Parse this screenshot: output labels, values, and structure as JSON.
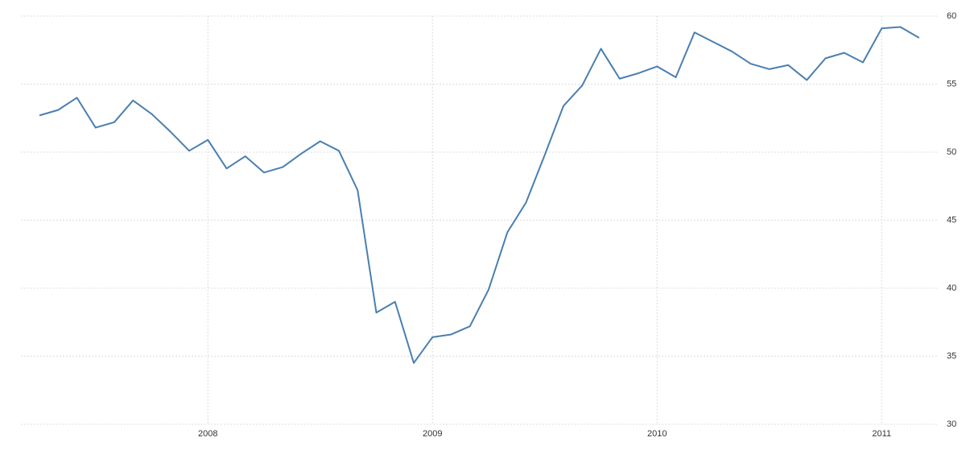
{
  "chart_data": {
    "type": "line",
    "categories": [
      null,
      null,
      null,
      null,
      null,
      null,
      null,
      null,
      null,
      "2008",
      null,
      null,
      null,
      null,
      null,
      null,
      null,
      null,
      null,
      null,
      null,
      "2009",
      null,
      null,
      null,
      null,
      null,
      null,
      null,
      null,
      null,
      null,
      null,
      "2010",
      null,
      null,
      null,
      null,
      null,
      null,
      null,
      null,
      null,
      null,
      null,
      "2011",
      null,
      null
    ],
    "series": [
      {
        "color": "#4a7fb0",
        "values": [
          52.7,
          53.1,
          54.0,
          51.8,
          52.2,
          53.8,
          52.8,
          51.5,
          50.1,
          50.9,
          48.8,
          49.7,
          48.5,
          48.9,
          49.9,
          50.8,
          50.1,
          47.2,
          38.2,
          39.0,
          34.5,
          36.4,
          36.6,
          37.2,
          39.9,
          44.1,
          46.3,
          49.8,
          53.4,
          54.9,
          57.6,
          55.4,
          55.8,
          56.3,
          55.5,
          58.8,
          58.1,
          57.4,
          56.5,
          56.1,
          56.4,
          55.3,
          56.9,
          57.3,
          56.6,
          59.1,
          59.2,
          58.4
        ]
      }
    ],
    "ylim": [
      30,
      60
    ],
    "yticks": [
      30,
      35,
      40,
      45,
      50,
      55,
      60
    ],
    "grid": true,
    "y_axis_side": "right"
  }
}
